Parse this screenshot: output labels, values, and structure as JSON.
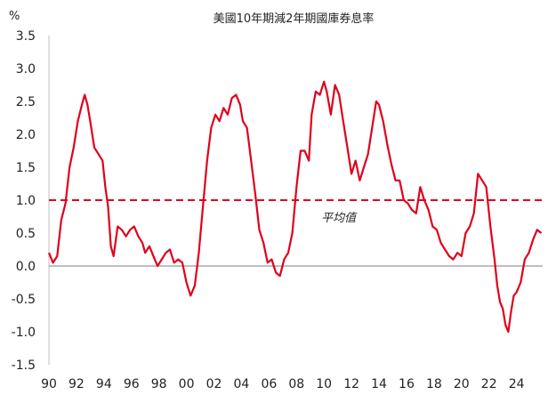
{
  "chart_data": {
    "type": "line",
    "title": "美國10年期減2年期國庫券息率",
    "y_unit": "%",
    "ylim": [
      -1.5,
      3.5
    ],
    "yticks": [
      3.5,
      3.0,
      2.5,
      2.0,
      1.5,
      1.0,
      0.5,
      0.0,
      -0.5,
      -1.0,
      -1.5
    ],
    "ytick_labels": [
      "3.5",
      "3.0",
      "2.5",
      "2.0",
      "1.5",
      "1.0",
      "0.5",
      "0.0",
      "-0.5",
      "-1.0",
      "-1.5"
    ],
    "xlim": [
      1990,
      2025.9
    ],
    "xticks": [
      1990,
      1992,
      1994,
      1996,
      1998,
      2000,
      2002,
      2004,
      2006,
      2008,
      2010,
      2012,
      2014,
      2016,
      2018,
      2020,
      2022,
      2024
    ],
    "xtick_labels": [
      "90",
      "92",
      "94",
      "96",
      "98",
      "00",
      "02",
      "04",
      "06",
      "08",
      "10",
      "12",
      "14",
      "16",
      "18",
      "20",
      "22",
      "24"
    ],
    "grid": false,
    "series": [
      {
        "color": "#e0001b",
        "x": [
          1990.0,
          1990.3,
          1990.6,
          1990.9,
          1991.2,
          1991.5,
          1991.8,
          1992.1,
          1992.4,
          1992.6,
          1992.8,
          1993.0,
          1993.3,
          1993.6,
          1993.9,
          1994.1,
          1994.3,
          1994.5,
          1994.7,
          1995.0,
          1995.3,
          1995.6,
          1995.9,
          1996.2,
          1996.5,
          1996.8,
          1997.0,
          1997.3,
          1997.6,
          1997.9,
          1998.2,
          1998.5,
          1998.8,
          1999.1,
          1999.4,
          1999.7,
          2000.0,
          2000.3,
          2000.6,
          2000.9,
          2001.2,
          2001.5,
          2001.8,
          2002.1,
          2002.4,
          2002.7,
          2003.0,
          2003.3,
          2003.6,
          2003.9,
          2004.1,
          2004.4,
          2004.7,
          2005.0,
          2005.3,
          2005.6,
          2005.9,
          2006.2,
          2006.5,
          2006.8,
          2007.1,
          2007.4,
          2007.7,
          2008.0,
          2008.3,
          2008.6,
          2008.9,
          2009.1,
          2009.4,
          2009.7,
          2010.0,
          2010.2,
          2010.5,
          2010.8,
          2011.1,
          2011.4,
          2011.7,
          2012.0,
          2012.3,
          2012.6,
          2012.9,
          2013.2,
          2013.5,
          2013.8,
          2014.0,
          2014.3,
          2014.6,
          2014.9,
          2015.2,
          2015.5,
          2015.8,
          2016.1,
          2016.4,
          2016.7,
          2017.0,
          2017.3,
          2017.6,
          2017.9,
          2018.2,
          2018.5,
          2018.8,
          2019.1,
          2019.4,
          2019.7,
          2020.0,
          2020.3,
          2020.6,
          2020.9,
          2021.2,
          2021.5,
          2021.8,
          2022.1,
          2022.4,
          2022.6,
          2022.8,
          2023.0,
          2023.2,
          2023.4,
          2023.6,
          2023.8,
          2024.0,
          2024.3,
          2024.6,
          2024.9,
          2025.2,
          2025.5,
          2025.8
        ],
        "y": [
          0.2,
          0.05,
          0.15,
          0.7,
          0.95,
          1.5,
          1.8,
          2.2,
          2.45,
          2.6,
          2.45,
          2.2,
          1.8,
          1.7,
          1.6,
          1.2,
          0.9,
          0.3,
          0.15,
          0.6,
          0.55,
          0.45,
          0.55,
          0.6,
          0.45,
          0.35,
          0.2,
          0.3,
          0.15,
          0.0,
          0.1,
          0.2,
          0.25,
          0.05,
          0.1,
          0.05,
          -0.25,
          -0.45,
          -0.3,
          0.2,
          0.9,
          1.6,
          2.1,
          2.3,
          2.2,
          2.4,
          2.3,
          2.55,
          2.6,
          2.45,
          2.2,
          2.1,
          1.6,
          1.1,
          0.55,
          0.35,
          0.05,
          0.1,
          -0.1,
          -0.15,
          0.1,
          0.2,
          0.5,
          1.2,
          1.75,
          1.75,
          1.6,
          2.3,
          2.65,
          2.6,
          2.8,
          2.65,
          2.3,
          2.75,
          2.6,
          2.2,
          1.8,
          1.4,
          1.6,
          1.3,
          1.5,
          1.7,
          2.1,
          2.5,
          2.45,
          2.2,
          1.85,
          1.55,
          1.3,
          1.3,
          1.0,
          0.95,
          0.85,
          0.8,
          1.2,
          1.0,
          0.85,
          0.6,
          0.55,
          0.35,
          0.25,
          0.15,
          0.1,
          0.2,
          0.15,
          0.5,
          0.6,
          0.8,
          1.4,
          1.3,
          1.2,
          0.6,
          0.1,
          -0.3,
          -0.55,
          -0.65,
          -0.9,
          -1.0,
          -0.7,
          -0.45,
          -0.4,
          -0.25,
          0.1,
          0.2,
          0.4,
          0.55,
          0.5
        ]
      }
    ],
    "reference_line": {
      "label": "平均值",
      "value": 1.0,
      "color": "#e0001b",
      "style": "dashed"
    }
  }
}
